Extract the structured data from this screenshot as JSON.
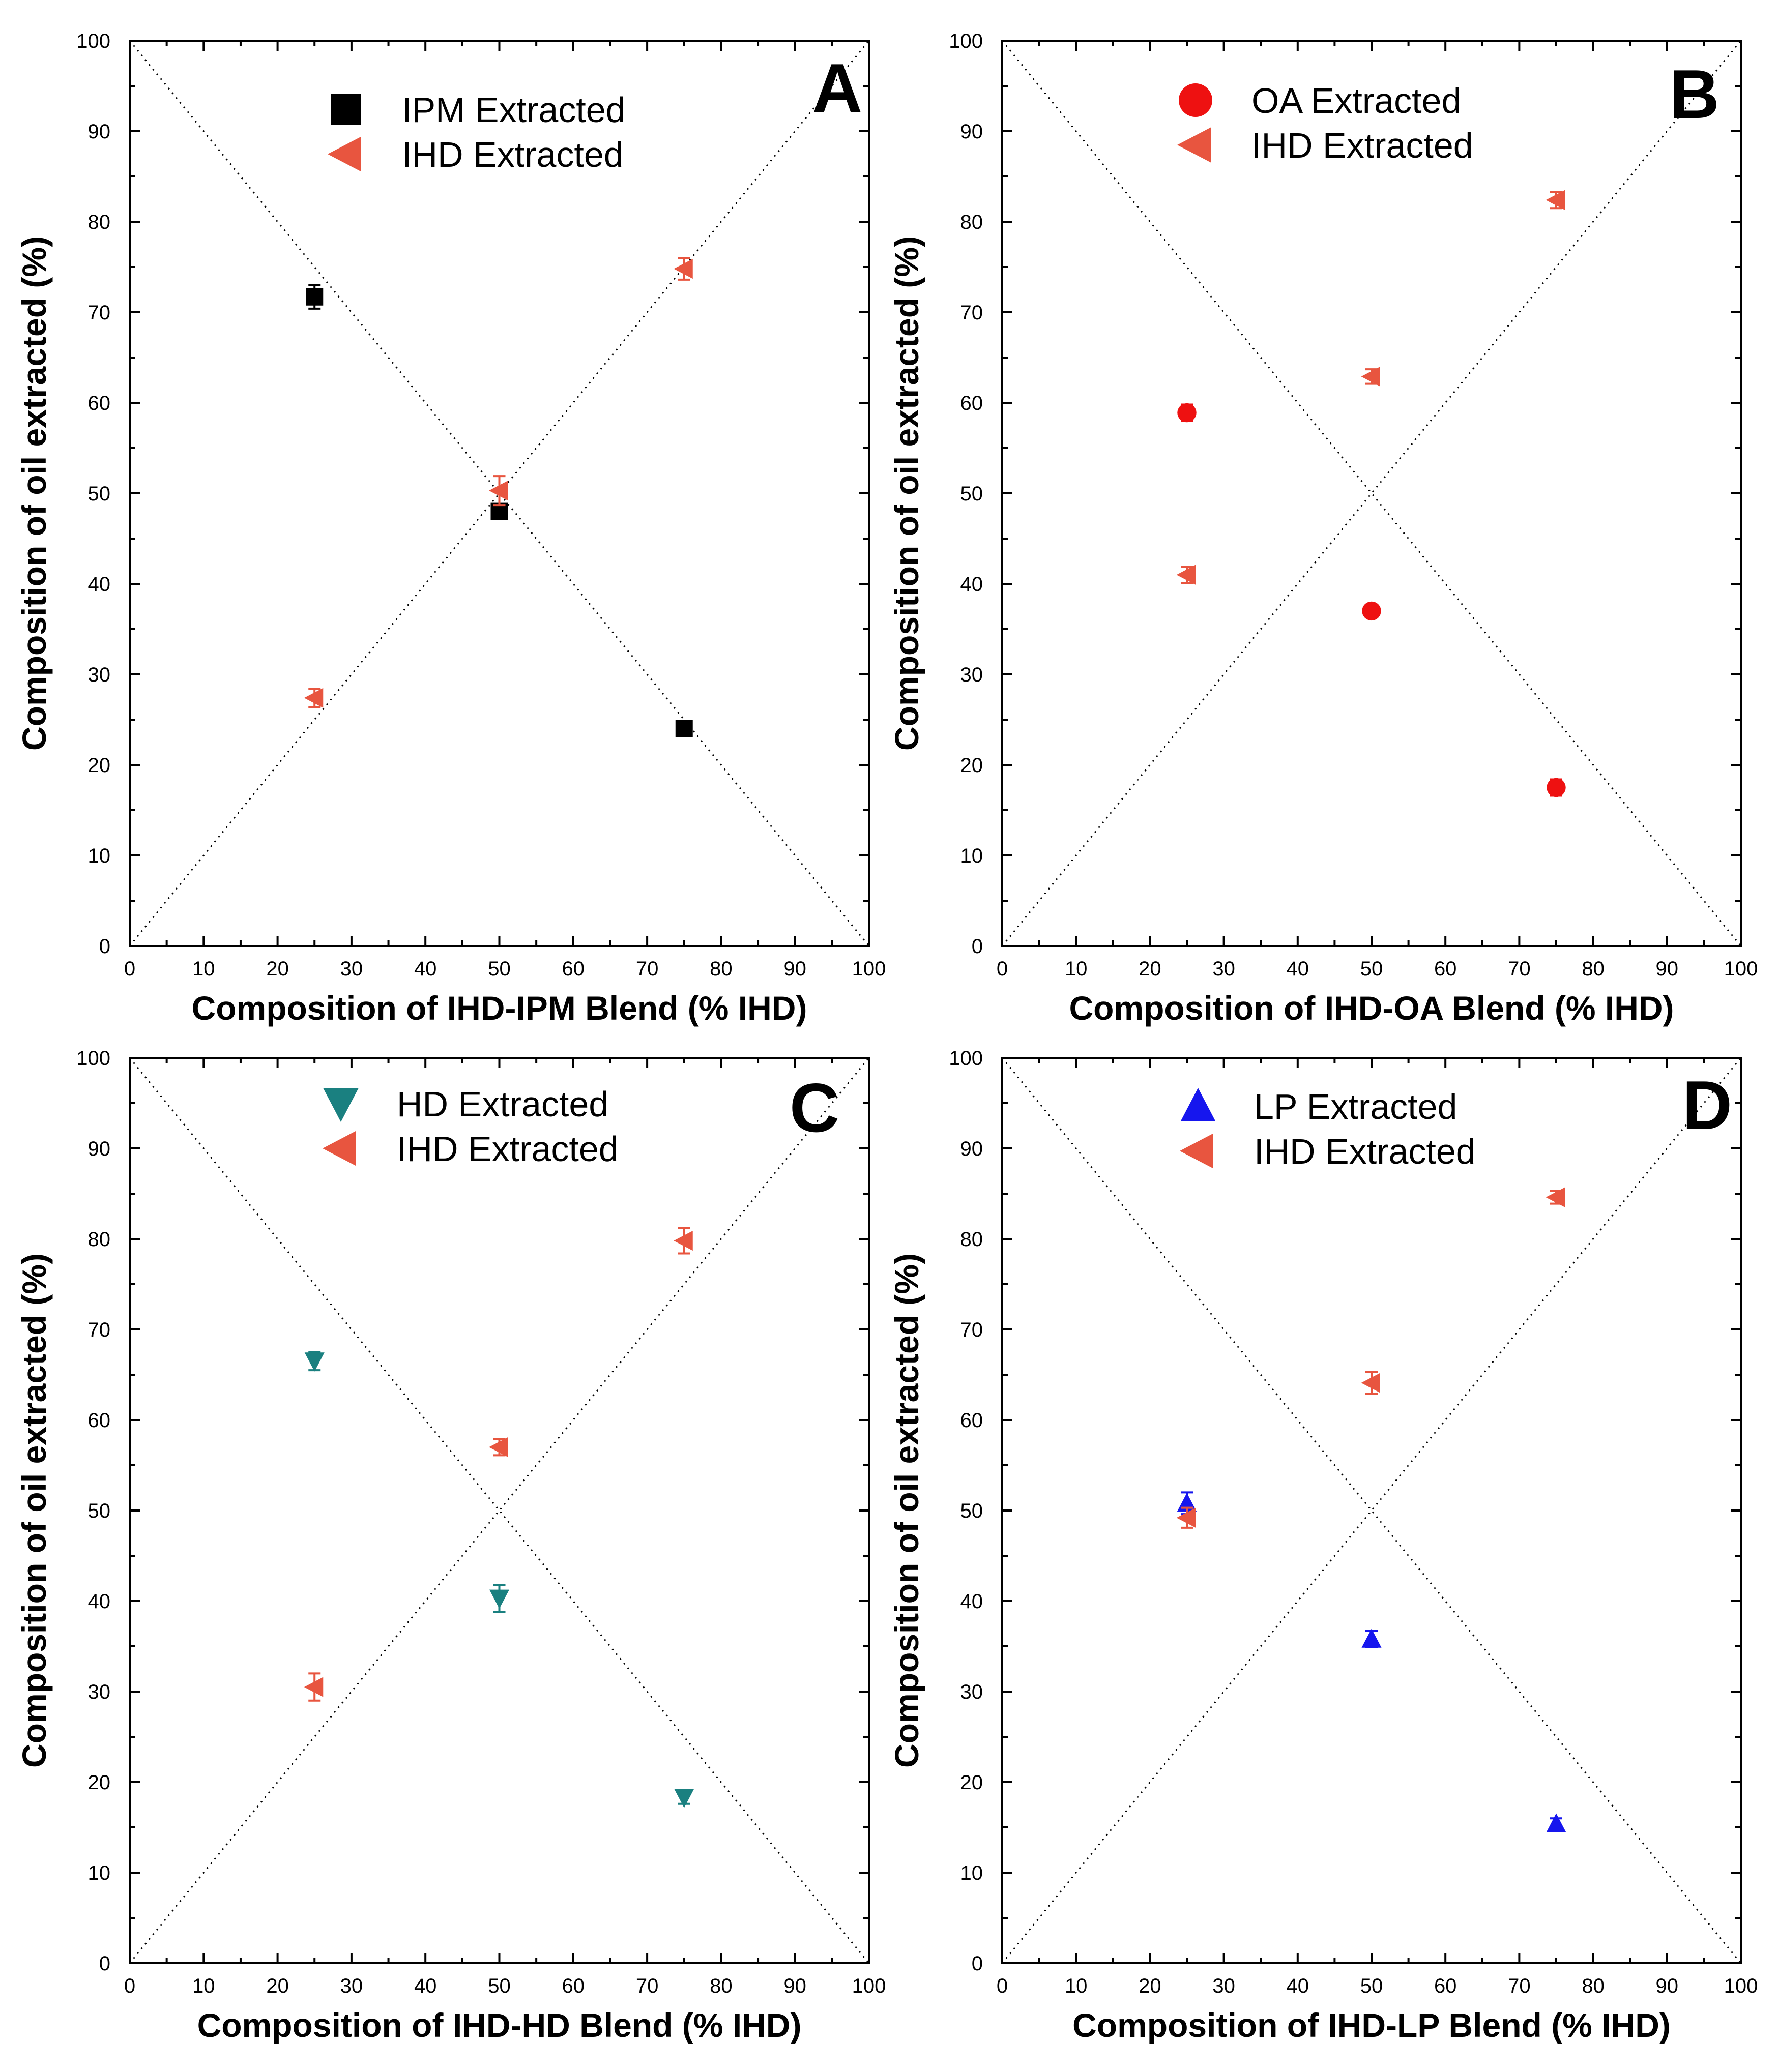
{
  "colors": {
    "black": "#000000",
    "ihd": "#e8553f",
    "oa": "#ee1111",
    "hd": "#1a8080",
    "lp": "#1616ee"
  },
  "chart_data": [
    {
      "type": "scatter",
      "panel_letter": "A",
      "xlabel": "Composition of IHD-IPM Blend (% IHD)",
      "ylabel": "Composition of oil extracted (%)",
      "xlim": [
        0,
        100
      ],
      "ylim": [
        0,
        100
      ],
      "x_ticks": [
        "0",
        "10",
        "20",
        "30",
        "40",
        "50",
        "60",
        "70",
        "80",
        "90",
        "100"
      ],
      "y_ticks": [
        "0",
        "10",
        "20",
        "30",
        "40",
        "50",
        "60",
        "70",
        "80",
        "90",
        "100"
      ],
      "reference_lines": [
        "y = x",
        "y = 100 - x"
      ],
      "grid": false,
      "legend_position": "top-center",
      "series": [
        {
          "name": "IPM Extracted",
          "marker": "square",
          "color": "#000000",
          "x": [
            25,
            50,
            75
          ],
          "y": [
            71.7,
            48.0,
            24.0
          ],
          "err": [
            1.3,
            0.8,
            0.5
          ]
        },
        {
          "name": "IHD Extracted",
          "marker": "triangle-left",
          "color": "#e8553f",
          "x": [
            25,
            50,
            75
          ],
          "y": [
            27.4,
            50.3,
            74.8
          ],
          "err": [
            1.0,
            1.6,
            1.2
          ]
        }
      ]
    },
    {
      "type": "scatter",
      "panel_letter": "B",
      "xlabel": "Composition of IHD-OA Blend (% IHD)",
      "ylabel": "Composition of oil extracted (%)",
      "xlim": [
        0,
        100
      ],
      "ylim": [
        0,
        100
      ],
      "x_ticks": [
        "0",
        "10",
        "20",
        "30",
        "40",
        "50",
        "60",
        "70",
        "80",
        "90",
        "100"
      ],
      "y_ticks": [
        "0",
        "10",
        "20",
        "30",
        "40",
        "50",
        "60",
        "70",
        "80",
        "90",
        "100"
      ],
      "reference_lines": [
        "y = x",
        "y = 100 - x"
      ],
      "grid": false,
      "legend_position": "top-center",
      "series": [
        {
          "name": "OA Extracted",
          "marker": "circle",
          "color": "#ee1111",
          "x": [
            25,
            50,
            75
          ],
          "y": [
            58.9,
            37.0,
            17.5
          ],
          "err": [
            0.9,
            0.7,
            0.9
          ]
        },
        {
          "name": "IHD Extracted",
          "marker": "triangle-left",
          "color": "#e8553f",
          "x": [
            25,
            50,
            75
          ],
          "y": [
            41.0,
            62.9,
            82.4
          ],
          "err": [
            0.9,
            0.8,
            0.9
          ]
        }
      ]
    },
    {
      "type": "scatter",
      "panel_letter": "C",
      "xlabel": "Composition of IHD-HD Blend (% IHD)",
      "ylabel": "Composition of oil extracted (%)",
      "xlim": [
        0,
        100
      ],
      "ylim": [
        0,
        100
      ],
      "x_ticks": [
        "0",
        "10",
        "20",
        "30",
        "40",
        "50",
        "60",
        "70",
        "80",
        "90",
        "100"
      ],
      "y_ticks": [
        "0",
        "10",
        "20",
        "30",
        "40",
        "50",
        "60",
        "70",
        "80",
        "90",
        "100"
      ],
      "reference_lines": [
        "y = x",
        "y = 100 - x"
      ],
      "grid": false,
      "legend_position": "top-center",
      "series": [
        {
          "name": "HD Extracted",
          "marker": "triangle-down",
          "color": "#1a8080",
          "x": [
            25,
            50,
            75
          ],
          "y": [
            66.5,
            40.3,
            18.3
          ],
          "err": [
            1.0,
            1.5,
            0.7
          ]
        },
        {
          "name": "IHD Extracted",
          "marker": "triangle-left",
          "color": "#e8553f",
          "x": [
            25,
            50,
            75
          ],
          "y": [
            30.5,
            57.0,
            79.8
          ],
          "err": [
            1.5,
            0.9,
            1.4
          ]
        }
      ]
    },
    {
      "type": "scatter",
      "panel_letter": "D",
      "xlabel": "Composition of IHD-LP Blend (% IHD)",
      "ylabel": "Composition of oil extracted (%)",
      "xlim": [
        0,
        100
      ],
      "ylim": [
        0,
        100
      ],
      "x_ticks": [
        "0",
        "10",
        "20",
        "30",
        "40",
        "50",
        "60",
        "70",
        "80",
        "90",
        "100"
      ],
      "y_ticks": [
        "0",
        "10",
        "20",
        "30",
        "40",
        "50",
        "60",
        "70",
        "80",
        "90",
        "100"
      ],
      "reference_lines": [
        "y = x",
        "y = 100 - x"
      ],
      "grid": false,
      "legend_position": "top-center",
      "series": [
        {
          "name": "LP Extracted",
          "marker": "triangle-up",
          "color": "#1616ee",
          "x": [
            25,
            50,
            75
          ],
          "y": [
            50.8,
            35.8,
            15.4
          ],
          "err": [
            1.2,
            0.9,
            0.6
          ]
        },
        {
          "name": "IHD Extracted",
          "marker": "triangle-left",
          "color": "#e8553f",
          "x": [
            25,
            50,
            75
          ],
          "y": [
            49.2,
            64.1,
            84.6
          ],
          "err": [
            1.1,
            1.2,
            0.7
          ]
        }
      ]
    }
  ]
}
